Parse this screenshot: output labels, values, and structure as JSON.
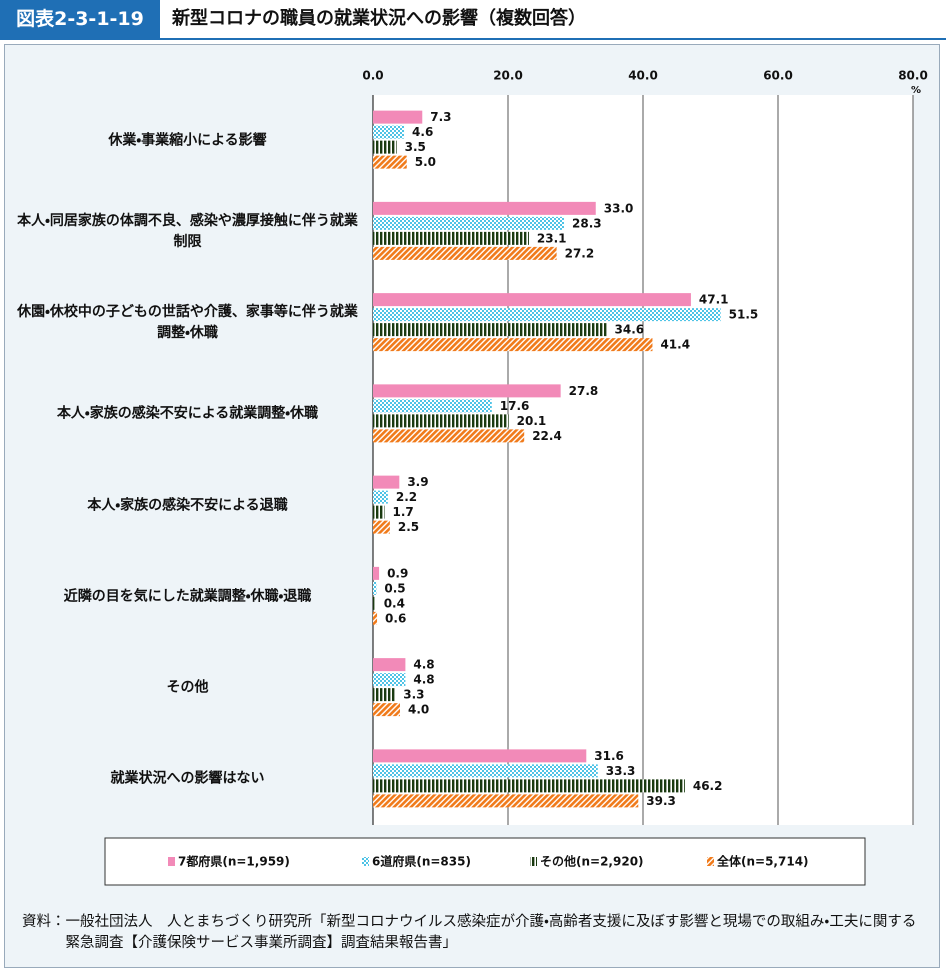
{
  "header": {
    "label": "図表2-3-1-19",
    "title": "新型コロナの職員の就業状況への影響（複数回答）"
  },
  "chart_data": {
    "type": "barh",
    "categories": [
      "休業・事業縮小による影響",
      "本人・同居家族の体調不良、感染や濃厚接触に伴う就業制限",
      "休園・休校中の子どもの世話や介護、家事等に伴う就業調整・休職",
      "本人・家族の感染不安による就業調整・休職",
      "本人・家族の感染不安による退職",
      "近隣の目を気にした就業調整・休職・退職",
      "その他",
      "就業状況への影響はない"
    ],
    "series": [
      {
        "name": "7都府県(n=1,959)",
        "color": "#f28ab8",
        "pattern": "solid",
        "values": [
          7.3,
          33.0,
          47.1,
          27.8,
          3.9,
          0.9,
          4.8,
          31.6
        ],
        "value_labels": [
          "7.3",
          "33.0",
          "47.1",
          "27.8",
          "3.9",
          "0.9",
          "4.8",
          "31.6"
        ]
      },
      {
        "name": "6道府県(n=835)",
        "color": "#4ec3e6",
        "pattern": "cross",
        "values": [
          4.6,
          28.3,
          51.5,
          17.6,
          2.2,
          0.5,
          4.8,
          33.3
        ],
        "value_labels": [
          "4.6",
          "28.3",
          "51.5",
          "17.6",
          "2.2",
          "0.5",
          "4.8",
          "33.3"
        ]
      },
      {
        "name": "その他(n=2,920)",
        "color": "#1a3a10",
        "pattern": "vstripe",
        "values": [
          3.5,
          23.1,
          34.6,
          20.1,
          1.7,
          0.4,
          3.3,
          46.2
        ],
        "value_labels": [
          "3.5",
          "23.1",
          "34.6",
          "20.1",
          "1.7",
          "0.4",
          "3.3",
          "46.2"
        ]
      },
      {
        "name": "全体(n=5,714)",
        "color": "#f07a1a",
        "pattern": "diag",
        "values": [
          5.0,
          27.2,
          41.4,
          22.4,
          2.5,
          0.6,
          4.0,
          39.3
        ],
        "value_labels": [
          "5.0",
          "27.2",
          "41.4",
          "22.4",
          "2.5",
          "0.6",
          "4.0",
          "39.3"
        ]
      }
    ],
    "xlim": [
      0,
      80
    ],
    "xticks": [
      {
        "value": 0,
        "label": "0.0"
      },
      {
        "value": 20,
        "label": "20.0"
      },
      {
        "value": 40,
        "label": "40.0"
      },
      {
        "value": 60,
        "label": "60.0"
      },
      {
        "value": 80,
        "label": "80.0"
      }
    ],
    "x_unit": "%",
    "grid": true,
    "legend": "bottom"
  },
  "source": {
    "label": "資料：",
    "text": "一般社団法人　人とまちづくり研究所「新型コロナウイルス感染症が介護・高齢者支援に及ぼす影響と現場での取組み・工夫に関する緊急調査【介護保険サービス事業所調査】調査結果報告書」"
  }
}
